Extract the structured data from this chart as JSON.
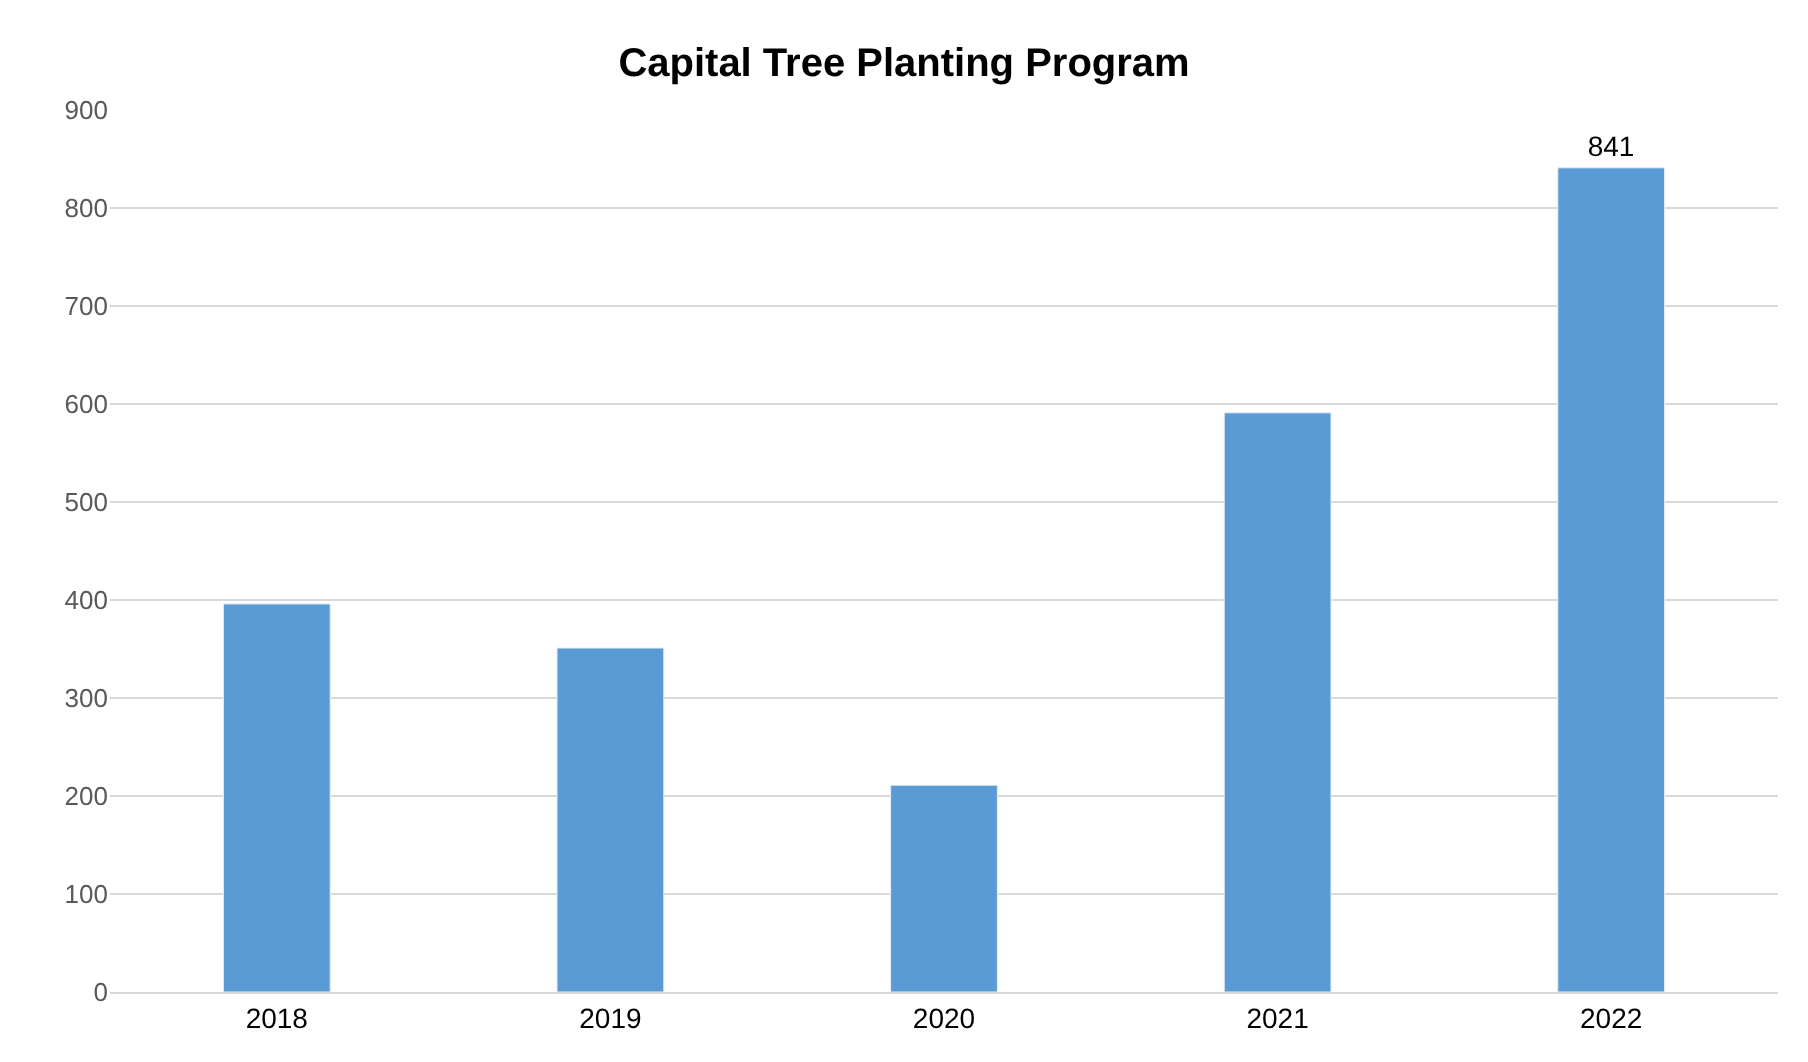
{
  "chart_data": {
    "type": "bar",
    "title": "Capital Tree Planting Program",
    "categories": [
      "2018",
      "2019",
      "2020",
      "2021",
      "2022"
    ],
    "values": [
      396,
      351,
      211,
      591,
      841
    ],
    "value_labels": [
      null,
      null,
      null,
      null,
      "841"
    ],
    "color": "#5b9bd5",
    "ylim": [
      0,
      900
    ],
    "yticks": [
      0,
      100,
      200,
      300,
      400,
      500,
      600,
      700,
      800,
      900
    ],
    "grid": "y",
    "legend": false
  }
}
